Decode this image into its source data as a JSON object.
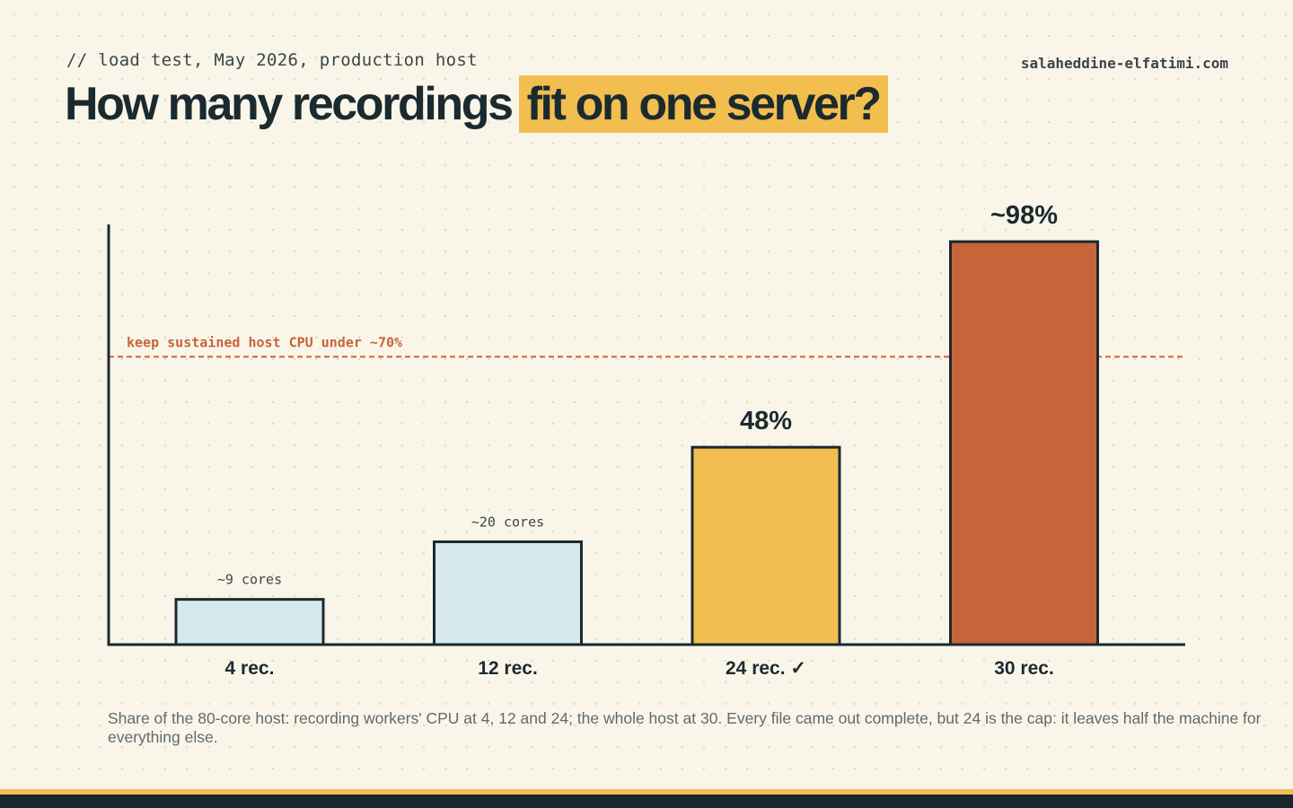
{
  "header": {
    "kicker": "// load test, May 2026, production host",
    "site": "salaheddine-elfatimi.com",
    "title_plain": "How many recordings",
    "title_highlight": "fit on one server?"
  },
  "chart_data": {
    "type": "bar",
    "categories": [
      "4 rec.",
      "12 rec.",
      "24 rec. ✓",
      "30 rec."
    ],
    "values": [
      11,
      25,
      48,
      98
    ],
    "value_labels": [
      "~9 cores",
      "~20 cores",
      "48%",
      "~98%"
    ],
    "value_label_style": [
      "small",
      "small",
      "large",
      "large"
    ],
    "bar_colors": [
      "#d5e9ee",
      "#d5e9ee",
      "#f1be4f",
      "#c8643a"
    ],
    "ylim": [
      0,
      100
    ],
    "threshold": {
      "value": 70,
      "label": "keep sustained host CPU under ~70%",
      "color": "#c8643a"
    },
    "title": "",
    "xlabel": "",
    "ylabel": "",
    "grid": false,
    "legend": "none"
  },
  "caption": "Share of the 80-core host: recording workers' CPU at 4, 12 and 24; the whole host at 30. Every file came out complete, but 24 is the cap: it leaves half the machine for everything else.",
  "colors": {
    "background": "#f9f6e9",
    "ink": "#1b2a2f",
    "accent": "#f1be4f",
    "alert": "#c8643a",
    "light_bar": "#d5e9ee"
  }
}
